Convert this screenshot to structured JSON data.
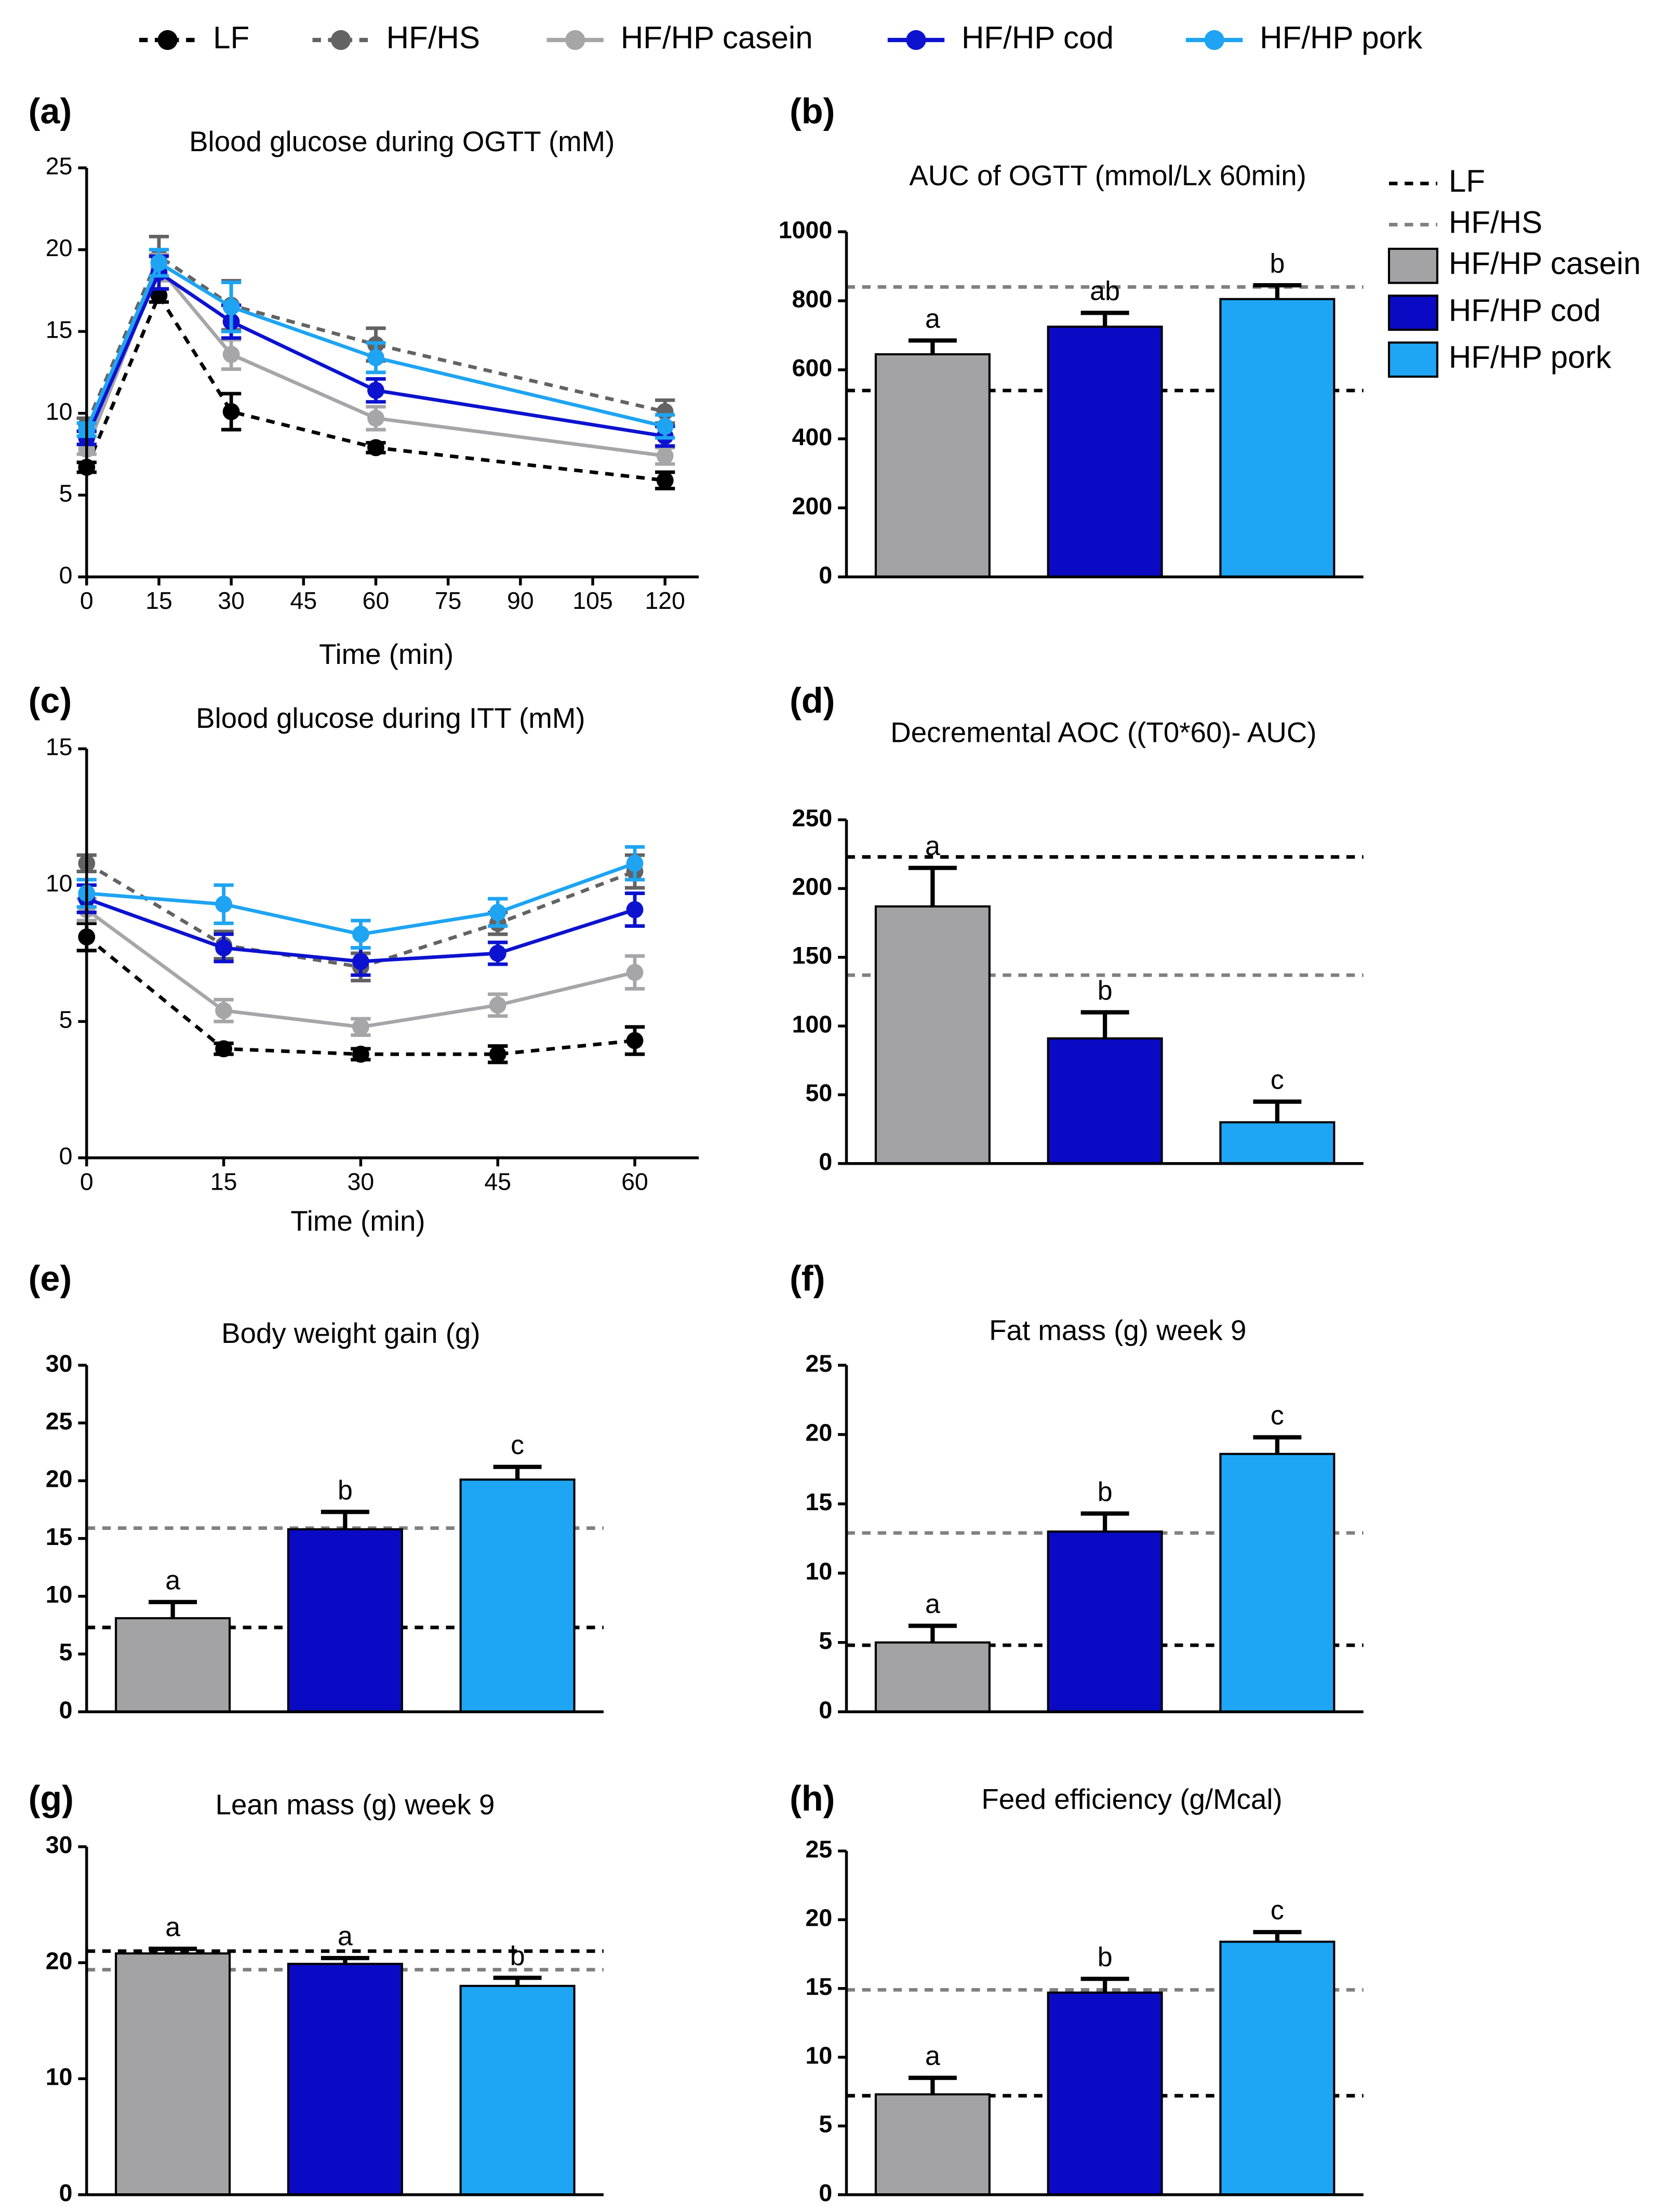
{
  "chart_data": [
    {
      "type": "line",
      "label": "(a)",
      "title": "Blood glucose during OGTT (mM)",
      "xlabel": "Time (min)",
      "x": [
        0,
        15,
        30,
        60,
        120
      ],
      "xlim": [
        0,
        127
      ],
      "xticks": [
        0,
        15,
        30,
        45,
        60,
        75,
        90,
        105,
        120
      ],
      "ylim": [
        0,
        25
      ],
      "yticks": [
        0,
        5,
        10,
        15,
        20,
        25
      ],
      "legend": "top",
      "series": [
        {
          "name": "LF",
          "color": "#000000",
          "dashed": true,
          "values": [
            6.7,
            17.2,
            10.1,
            7.9,
            5.9
          ],
          "errors": [
            0.3,
            0.4,
            1.1,
            0.3,
            0.5
          ]
        },
        {
          "name": "HF/HS",
          "color": "#636363",
          "dashed": true,
          "values": [
            9.3,
            19.6,
            16.6,
            14.2,
            10.1
          ],
          "errors": [
            0.4,
            1.2,
            1.5,
            1.0,
            0.7
          ]
        },
        {
          "name": "HF/HP casein",
          "color": "#a6a6a8",
          "dashed": false,
          "values": [
            7.8,
            18.9,
            13.6,
            9.7,
            7.4
          ],
          "errors": [
            0.3,
            0.8,
            0.9,
            0.7,
            0.5
          ]
        },
        {
          "name": "HF/HP cod",
          "color": "#0c12cf",
          "dashed": false,
          "values": [
            8.5,
            18.6,
            15.6,
            11.4,
            8.6
          ],
          "errors": [
            0.4,
            1.0,
            1.0,
            0.7,
            0.6
          ]
        },
        {
          "name": "HF/HP pork",
          "color": "#1ea4f2",
          "dashed": false,
          "values": [
            9.0,
            19.2,
            16.5,
            13.4,
            9.2
          ],
          "errors": [
            0.4,
            0.8,
            1.5,
            0.9,
            0.7
          ]
        }
      ]
    },
    {
      "type": "bar",
      "label": "(b)",
      "title": "AUC of OGTT (mmol/Lx 60min)",
      "ylim": [
        0,
        1000
      ],
      "yticks": [
        0,
        200,
        400,
        600,
        800,
        1000
      ],
      "legend": "right",
      "reference_lines": [
        {
          "name": "LF",
          "color": "#000000",
          "value": 540
        },
        {
          "name": "HF/HS",
          "color": "#808080",
          "value": 840
        }
      ],
      "series": [
        {
          "name": "HF/HP casein",
          "color": "#a3a3a6",
          "values": [
            645
          ],
          "errors": [
            40
          ],
          "annotations": [
            "a"
          ]
        },
        {
          "name": "HF/HP cod",
          "color": "#0a0ac4",
          "values": [
            725
          ],
          "errors": [
            40
          ],
          "annotations": [
            "ab"
          ]
        },
        {
          "name": "HF/HP pork",
          "color": "#1ea6f5",
          "values": [
            805
          ],
          "errors": [
            40
          ],
          "annotations": [
            "b"
          ]
        }
      ]
    },
    {
      "type": "line",
      "label": "(c)",
      "title": "Blood glucose during ITT (mM)",
      "xlabel": "Time (min)",
      "x": [
        0,
        15,
        30,
        45,
        60
      ],
      "xlim": [
        0,
        67
      ],
      "xticks": [
        0,
        15,
        30,
        45,
        60
      ],
      "ylim": [
        0,
        15
      ],
      "yticks": [
        0,
        5,
        10,
        15
      ],
      "series": [
        {
          "color": "#000000",
          "dashed": true,
          "values": [
            8.1,
            4.0,
            3.8,
            3.8,
            4.3
          ],
          "errors": [
            0.5,
            0.2,
            0.2,
            0.3,
            0.5
          ]
        },
        {
          "color": "#636363",
          "dashed": true,
          "values": [
            10.8,
            7.8,
            7.0,
            8.6,
            10.5
          ],
          "errors": [
            0.3,
            0.5,
            0.5,
            0.4,
            0.6
          ]
        },
        {
          "color": "#a6a6a8",
          "dashed": false,
          "values": [
            9.1,
            5.4,
            4.8,
            5.6,
            6.8
          ],
          "errors": [
            0.4,
            0.4,
            0.3,
            0.4,
            0.6
          ]
        },
        {
          "color": "#0c12cf",
          "dashed": false,
          "values": [
            9.5,
            7.7,
            7.2,
            7.5,
            9.1
          ],
          "errors": [
            0.5,
            0.5,
            0.5,
            0.4,
            0.6
          ]
        },
        {
          "color": "#1ea4f2",
          "dashed": false,
          "values": [
            9.7,
            9.3,
            8.2,
            9.0,
            10.8
          ],
          "errors": [
            0.5,
            0.7,
            0.5,
            0.5,
            0.6
          ]
        }
      ]
    },
    {
      "type": "bar",
      "label": "(d)",
      "title": "Decremental AOC ((T0*60)- AUC)",
      "ylim": [
        0,
        250
      ],
      "yticks": [
        0,
        50,
        100,
        150,
        200,
        250
      ],
      "reference_lines": [
        {
          "color": "#000000",
          "value": 223
        },
        {
          "color": "#808080",
          "value": 137
        }
      ],
      "series": [
        {
          "color": "#a3a3a6",
          "values": [
            187
          ],
          "errors": [
            28
          ],
          "annotations": [
            "a"
          ]
        },
        {
          "color": "#0a0ac4",
          "values": [
            91
          ],
          "errors": [
            19
          ],
          "annotations": [
            "b"
          ]
        },
        {
          "color": "#1ea6f5",
          "values": [
            30
          ],
          "errors": [
            15
          ],
          "annotations": [
            "c"
          ]
        }
      ]
    },
    {
      "type": "bar",
      "label": "(e)",
      "title": "Body weight gain (g)",
      "ylim": [
        0,
        30
      ],
      "yticks": [
        0,
        5,
        10,
        15,
        20,
        25,
        30
      ],
      "reference_lines": [
        {
          "color": "#000000",
          "value": 7.3
        },
        {
          "color": "#808080",
          "value": 15.9
        }
      ],
      "series": [
        {
          "color": "#a3a3a6",
          "values": [
            8.1
          ],
          "errors": [
            1.4
          ],
          "annotations": [
            "a"
          ]
        },
        {
          "color": "#0a0ac4",
          "values": [
            15.8
          ],
          "errors": [
            1.5
          ],
          "annotations": [
            "b"
          ]
        },
        {
          "color": "#1ea6f5",
          "values": [
            20.1
          ],
          "errors": [
            1.1
          ],
          "annotations": [
            "c"
          ]
        }
      ]
    },
    {
      "type": "bar",
      "label": "(f)",
      "title": "Fat mass (g) week 9",
      "ylim": [
        0,
        25
      ],
      "yticks": [
        0,
        5,
        10,
        15,
        20,
        25
      ],
      "reference_lines": [
        {
          "color": "#000000",
          "value": 4.8
        },
        {
          "color": "#808080",
          "value": 12.9
        }
      ],
      "series": [
        {
          "color": "#a3a3a6",
          "values": [
            5.0
          ],
          "errors": [
            1.2
          ],
          "annotations": [
            "a"
          ]
        },
        {
          "color": "#0a0ac4",
          "values": [
            13.0
          ],
          "errors": [
            1.3
          ],
          "annotations": [
            "b"
          ]
        },
        {
          "color": "#1ea6f5",
          "values": [
            18.6
          ],
          "errors": [
            1.2
          ],
          "annotations": [
            "c"
          ]
        }
      ]
    },
    {
      "type": "bar",
      "label": "(g)",
      "title": "Lean mass (g) week 9",
      "ylim": [
        0,
        30
      ],
      "yticks": [
        0,
        10,
        20,
        30
      ],
      "reference_lines": [
        {
          "color": "#000000",
          "value": 21.0
        },
        {
          "color": "#808080",
          "value": 19.4
        }
      ],
      "series": [
        {
          "color": "#a3a3a6",
          "values": [
            20.8
          ],
          "errors": [
            0.4
          ],
          "annotations": [
            "a"
          ]
        },
        {
          "color": "#0a0ac4",
          "values": [
            19.9
          ],
          "errors": [
            0.5
          ],
          "annotations": [
            "a"
          ]
        },
        {
          "color": "#1ea6f5",
          "values": [
            18.0
          ],
          "errors": [
            0.7
          ],
          "annotations": [
            "b"
          ]
        }
      ]
    },
    {
      "type": "bar",
      "label": "(h)",
      "title": "Feed efficiency (g/Mcal)",
      "ylim": [
        0,
        25
      ],
      "yticks": [
        0,
        5,
        10,
        15,
        20,
        25
      ],
      "reference_lines": [
        {
          "color": "#000000",
          "value": 7.2
        },
        {
          "color": "#808080",
          "value": 14.9
        }
      ],
      "series": [
        {
          "color": "#a3a3a6",
          "values": [
            7.3
          ],
          "errors": [
            1.2
          ],
          "annotations": [
            "a"
          ]
        },
        {
          "color": "#0a0ac4",
          "values": [
            14.7
          ],
          "errors": [
            1.0
          ],
          "annotations": [
            "b"
          ]
        },
        {
          "color": "#1ea6f5",
          "values": [
            18.4
          ],
          "errors": [
            0.7
          ],
          "annotations": [
            "c"
          ]
        }
      ]
    }
  ]
}
